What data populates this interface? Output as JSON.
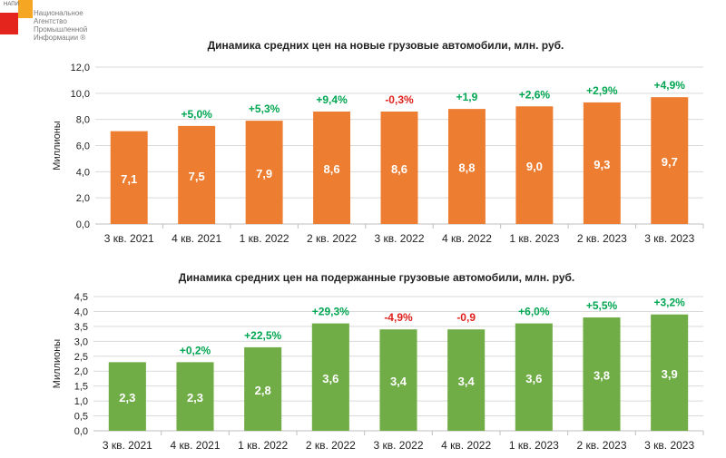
{
  "logo": {
    "abbr": "НАПИ",
    "lines": [
      "Национальное",
      "Агентство",
      "Промышленной",
      "Информации ®"
    ]
  },
  "colors": {
    "orange": "#ed7d31",
    "green": "#70ad47",
    "positive": "#00a651",
    "negative": "#e0201b",
    "grid": "#d9d9d9"
  },
  "chart_data": [
    {
      "type": "bar",
      "title": "Динамика средних цен на новые грузовые автомобили, млн. руб.",
      "xlabel": "",
      "ylabel": "Миллионы",
      "ylim": [
        0,
        12
      ],
      "yticks": [
        "0,0",
        "2,0",
        "4,0",
        "6,0",
        "8,0",
        "10,0",
        "12,0"
      ],
      "categories": [
        "3 кв. 2021",
        "4 кв. 2021",
        "1 кв. 2022",
        "2 кв. 2022",
        "3 кв. 2022",
        "4 кв. 2022",
        "1 кв. 2023",
        "2 кв. 2023",
        "3 кв. 2023"
      ],
      "values": [
        7.1,
        7.5,
        7.9,
        8.6,
        8.6,
        8.8,
        9.0,
        9.3,
        9.7
      ],
      "value_labels": [
        "7,1",
        "7,5",
        "7,9",
        "8,6",
        "8,6",
        "8,8",
        "9,0",
        "9,3",
        "9,7"
      ],
      "change_labels": [
        "",
        "+5,0%",
        "+5,3%",
        "+9,4%",
        "-0,3%",
        "+1,9",
        "+2,6%",
        "+2,9%",
        "+4,9%"
      ],
      "grid": true
    },
    {
      "type": "bar",
      "title": "Динамика средних цен на подержанные грузовые автомобили, млн. руб.",
      "xlabel": "",
      "ylabel": "Миллионы",
      "ylim": [
        0,
        4.5
      ],
      "yticks": [
        "0,0",
        "0,5",
        "1,0",
        "1,5",
        "2,0",
        "2,5",
        "3,0",
        "3,5",
        "4,0",
        "4,5"
      ],
      "categories": [
        "3 кв. 2021",
        "4 кв. 2021",
        "1 кв. 2022",
        "2 кв. 2022",
        "3 кв. 2022",
        "4 кв. 2022",
        "1 кв. 2023",
        "2 кв. 2023",
        "3 кв. 2023"
      ],
      "values": [
        2.3,
        2.3,
        2.8,
        3.6,
        3.4,
        3.4,
        3.6,
        3.8,
        3.9
      ],
      "value_labels": [
        "2,3",
        "2,3",
        "2,8",
        "3,6",
        "3,4",
        "3,4",
        "3,6",
        "3,8",
        "3,9"
      ],
      "change_labels": [
        "",
        "+0,2%",
        "+22,5%",
        "+29,3%",
        "-4,9%",
        "-0,9",
        "+6,0%",
        "+5,5%",
        "+3,2%"
      ],
      "grid": true
    }
  ]
}
